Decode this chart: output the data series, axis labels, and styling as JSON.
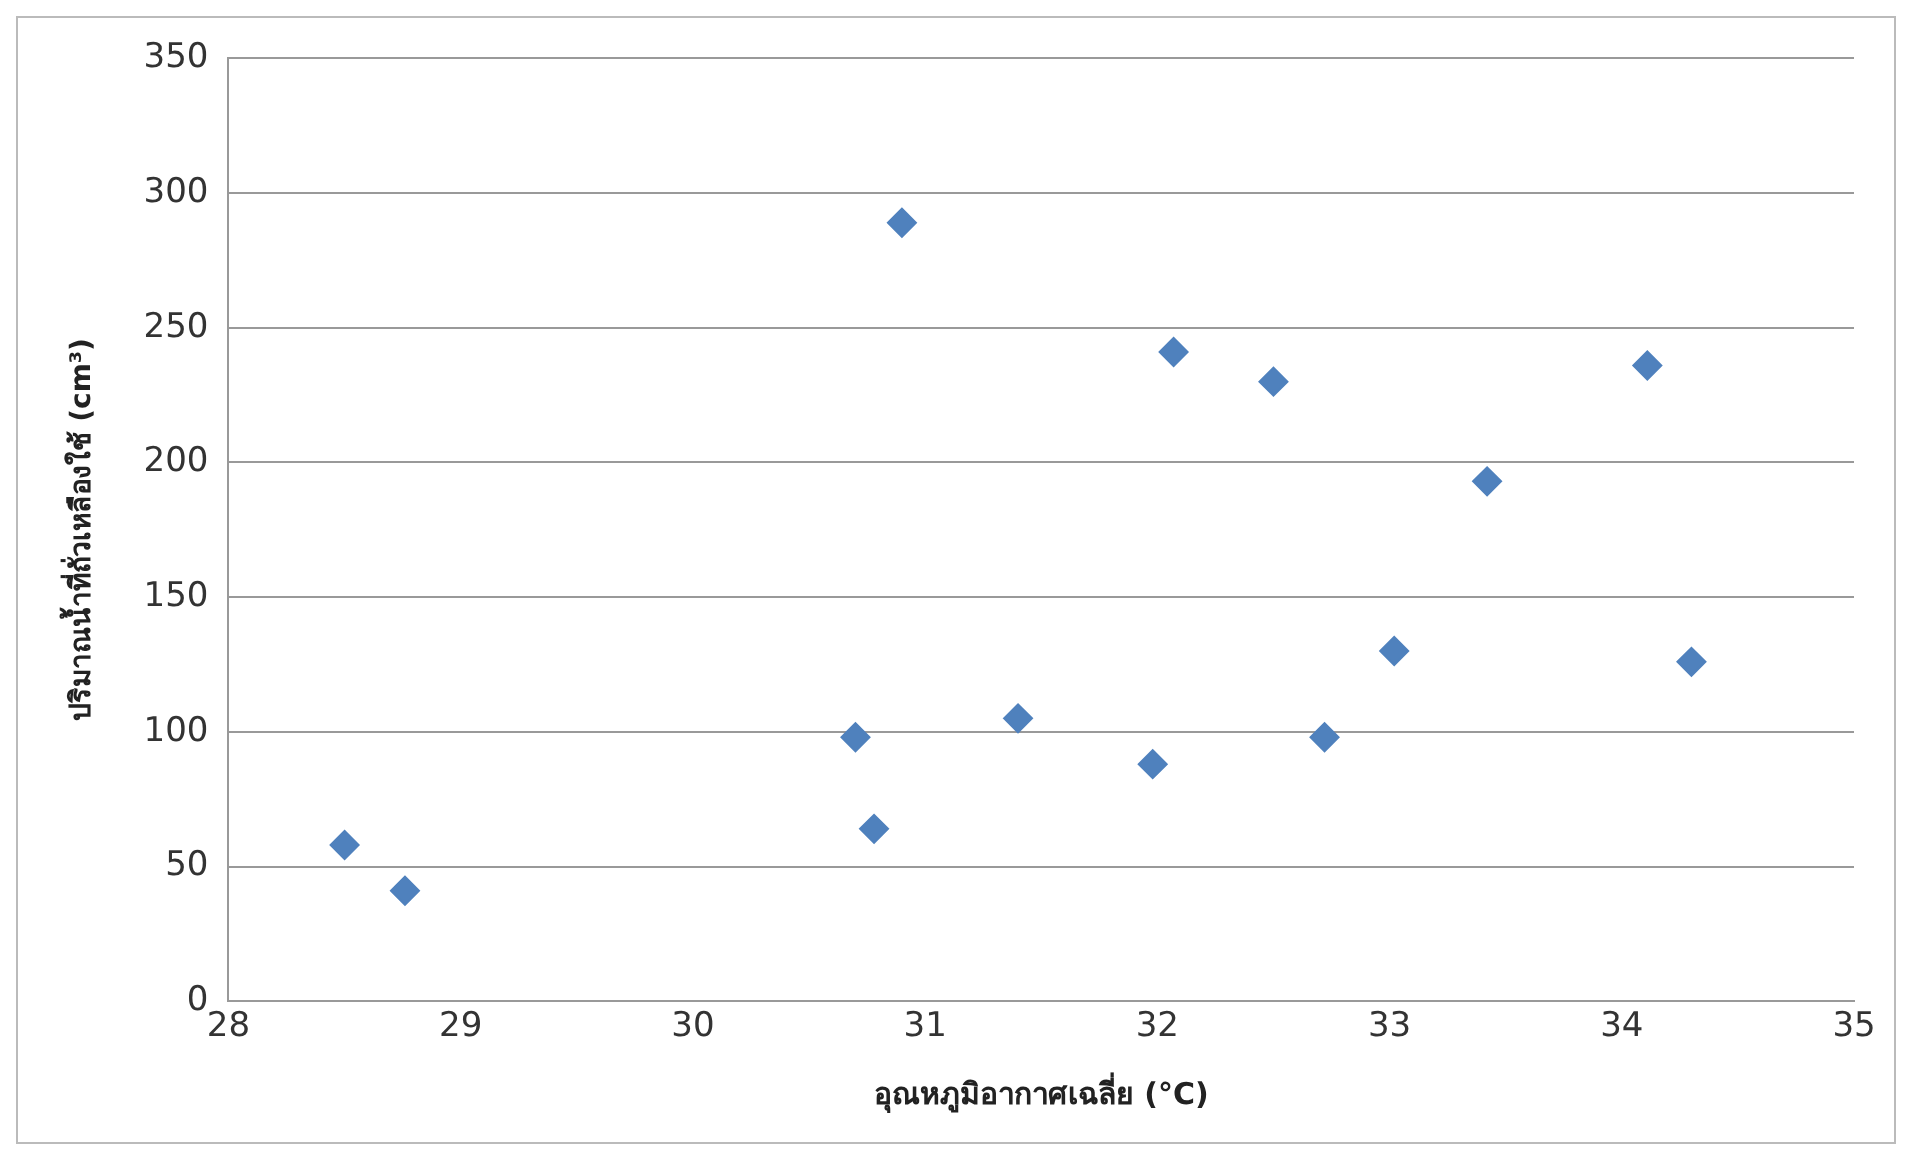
{
  "chart_data": {
    "type": "scatter",
    "xlabel": "อุณหภูมิอากาศเฉลี่ย (°C)",
    "ylabel": "ปริมาณน้ำที่ถั่วเหลืองใช้ (cm³)",
    "x": [
      28.5,
      28.76,
      30.7,
      30.78,
      30.9,
      31.4,
      31.98,
      32.07,
      32.5,
      32.72,
      33.02,
      33.42,
      34.11,
      34.3
    ],
    "series": [
      {
        "color": "#4f81bd",
        "values": [
          58,
          41,
          98,
          64,
          289,
          105,
          88,
          241,
          230,
          98,
          130,
          193,
          236,
          126
        ]
      }
    ],
    "xlim": [
      28,
      35
    ],
    "xticks": [
      28,
      29,
      30,
      31,
      32,
      33,
      34,
      35
    ],
    "ylim": [
      0,
      350
    ],
    "yticks": [
      0,
      50,
      100,
      150,
      200,
      250,
      300,
      350
    ],
    "grid": "y",
    "legend": false,
    "marker": "diamond"
  }
}
